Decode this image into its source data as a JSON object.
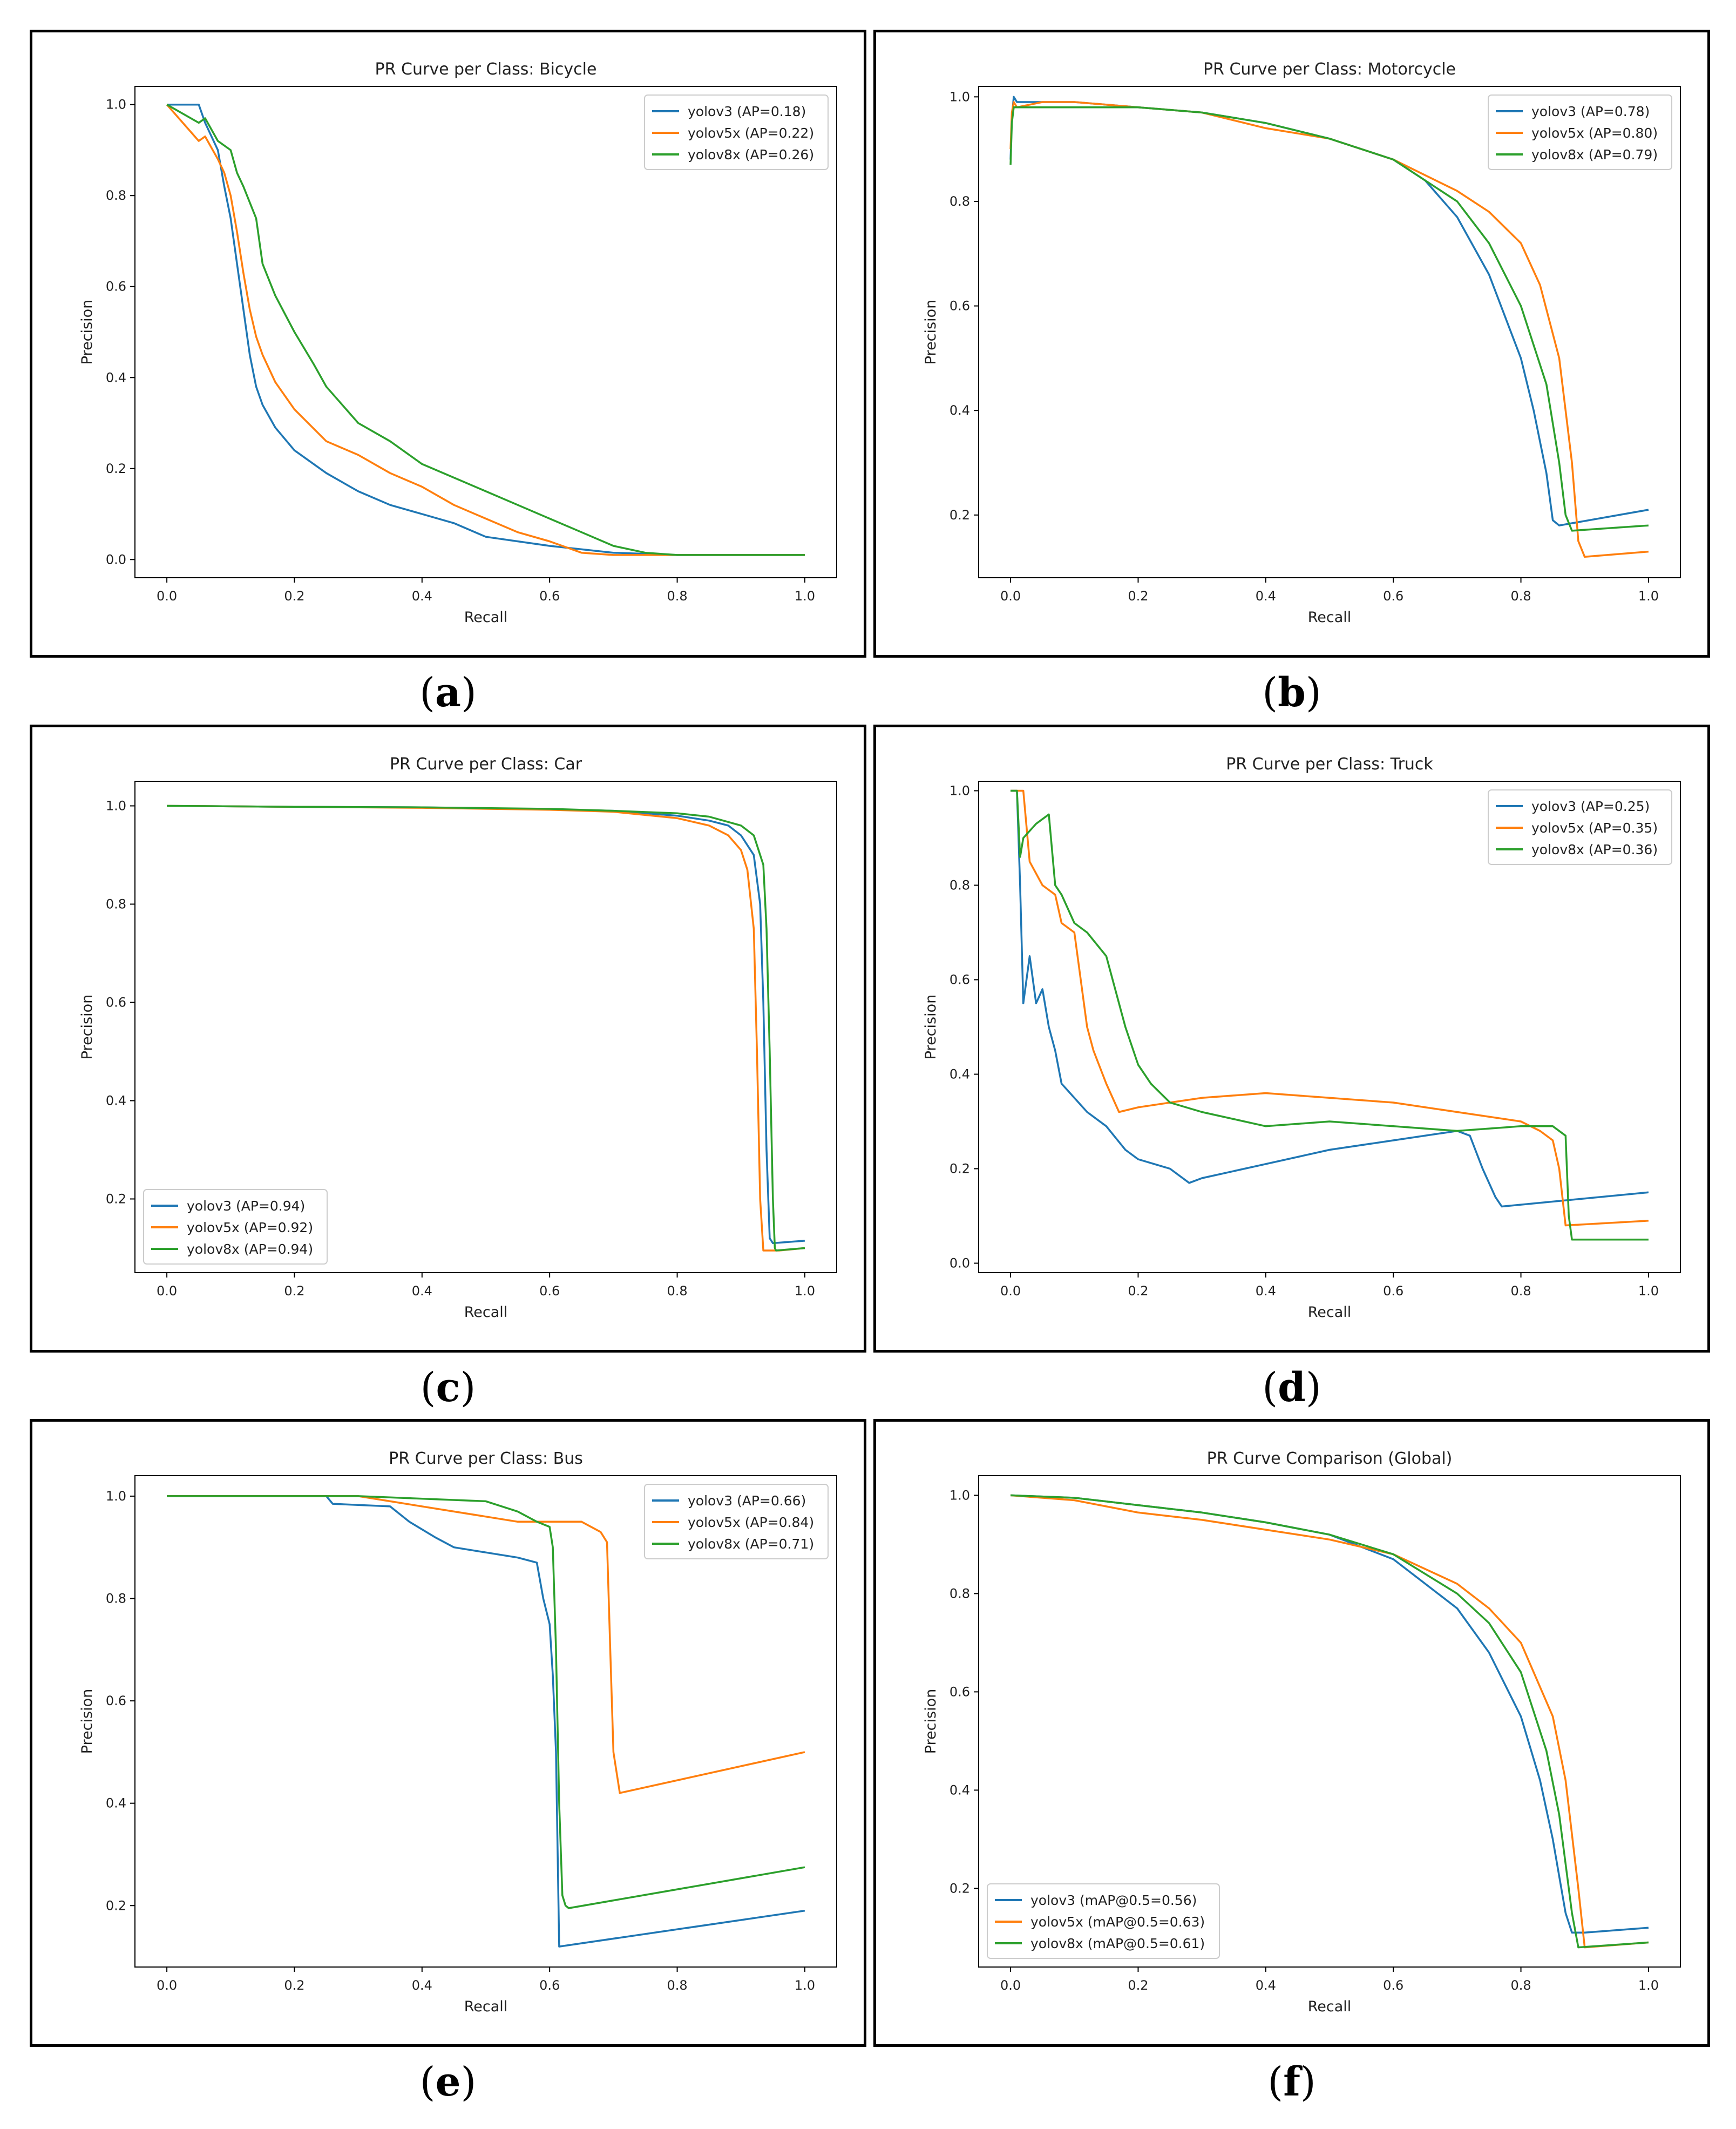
{
  "colors": {
    "yolov3": "#1f77b4",
    "yolov5x": "#ff7f0e",
    "yolov8x": "#2ca02c",
    "frame": "#000000"
  },
  "captions": [
    "a",
    "b",
    "c",
    "d",
    "e",
    "f"
  ],
  "chart_data": [
    {
      "type": "line",
      "title": "PR Curve per Class: Bicycle",
      "xlabel": "Recall",
      "ylabel": "Precision",
      "xlim": [
        -0.05,
        1.05
      ],
      "ylim": [
        -0.04,
        1.04
      ],
      "xticks": [
        "0.0",
        "0.2",
        "0.4",
        "0.6",
        "0.8",
        "1.0"
      ],
      "yticks": [
        "0.0",
        "0.2",
        "0.4",
        "0.6",
        "0.8",
        "1.0"
      ],
      "legend_position": "top-right",
      "series": [
        {
          "name": "yolov3 (AP=0.18)",
          "color_key": "yolov3",
          "x": [
            0.0,
            0.05,
            0.06,
            0.08,
            0.09,
            0.1,
            0.11,
            0.12,
            0.13,
            0.14,
            0.15,
            0.17,
            0.2,
            0.25,
            0.3,
            0.35,
            0.4,
            0.45,
            0.5,
            0.6,
            0.7,
            0.8,
            1.0
          ],
          "y": [
            1.0,
            1.0,
            0.96,
            0.9,
            0.82,
            0.75,
            0.65,
            0.55,
            0.45,
            0.38,
            0.34,
            0.29,
            0.24,
            0.19,
            0.15,
            0.12,
            0.1,
            0.08,
            0.05,
            0.03,
            0.015,
            0.01,
            0.01
          ]
        },
        {
          "name": "yolov5x (AP=0.22)",
          "color_key": "yolov5x",
          "x": [
            0.0,
            0.05,
            0.06,
            0.08,
            0.09,
            0.1,
            0.11,
            0.12,
            0.13,
            0.14,
            0.15,
            0.17,
            0.2,
            0.25,
            0.3,
            0.35,
            0.4,
            0.45,
            0.5,
            0.55,
            0.6,
            0.65,
            0.7,
            0.8,
            1.0
          ],
          "y": [
            1.0,
            0.92,
            0.93,
            0.88,
            0.85,
            0.8,
            0.72,
            0.63,
            0.55,
            0.49,
            0.45,
            0.39,
            0.33,
            0.26,
            0.23,
            0.19,
            0.16,
            0.12,
            0.09,
            0.06,
            0.04,
            0.015,
            0.01,
            0.01,
            0.01
          ]
        },
        {
          "name": "yolov8x (AP=0.26)",
          "color_key": "yolov8x",
          "x": [
            0.0,
            0.05,
            0.06,
            0.08,
            0.1,
            0.11,
            0.12,
            0.14,
            0.15,
            0.17,
            0.2,
            0.23,
            0.25,
            0.3,
            0.35,
            0.4,
            0.45,
            0.5,
            0.55,
            0.6,
            0.65,
            0.7,
            0.75,
            0.8,
            1.0
          ],
          "y": [
            1.0,
            0.96,
            0.97,
            0.92,
            0.9,
            0.85,
            0.82,
            0.75,
            0.65,
            0.58,
            0.5,
            0.43,
            0.38,
            0.3,
            0.26,
            0.21,
            0.18,
            0.15,
            0.12,
            0.09,
            0.06,
            0.03,
            0.015,
            0.01,
            0.01
          ]
        }
      ]
    },
    {
      "type": "line",
      "title": "PR Curve per Class: Motorcycle",
      "xlabel": "Recall",
      "ylabel": "Precision",
      "xlim": [
        -0.05,
        1.05
      ],
      "ylim": [
        0.08,
        1.02
      ],
      "xticks": [
        "0.0",
        "0.2",
        "0.4",
        "0.6",
        "0.8",
        "1.0"
      ],
      "yticks": [
        "0.2",
        "0.4",
        "0.6",
        "0.8",
        "1.0"
      ],
      "legend_position": "top-right",
      "series": [
        {
          "name": "yolov3 (AP=0.78)",
          "color_key": "yolov3",
          "x": [
            0.0,
            0.002,
            0.005,
            0.01,
            0.05,
            0.1,
            0.2,
            0.3,
            0.4,
            0.5,
            0.6,
            0.65,
            0.7,
            0.75,
            0.8,
            0.82,
            0.84,
            0.85,
            0.86,
            1.0
          ],
          "y": [
            0.88,
            0.96,
            1.0,
            0.99,
            0.99,
            0.99,
            0.98,
            0.97,
            0.95,
            0.92,
            0.88,
            0.84,
            0.77,
            0.66,
            0.5,
            0.4,
            0.28,
            0.19,
            0.18,
            0.21
          ]
        },
        {
          "name": "yolov5x (AP=0.80)",
          "color_key": "yolov5x",
          "x": [
            0.0,
            0.002,
            0.005,
            0.01,
            0.05,
            0.1,
            0.2,
            0.3,
            0.4,
            0.5,
            0.6,
            0.7,
            0.75,
            0.8,
            0.83,
            0.86,
            0.88,
            0.89,
            0.9,
            1.0
          ],
          "y": [
            0.9,
            0.97,
            0.99,
            0.98,
            0.99,
            0.99,
            0.98,
            0.97,
            0.94,
            0.92,
            0.88,
            0.82,
            0.78,
            0.72,
            0.64,
            0.5,
            0.3,
            0.15,
            0.12,
            0.13
          ]
        },
        {
          "name": "yolov8x (AP=0.79)",
          "color_key": "yolov8x",
          "x": [
            0.0,
            0.002,
            0.005,
            0.01,
            0.05,
            0.1,
            0.2,
            0.3,
            0.4,
            0.5,
            0.6,
            0.7,
            0.75,
            0.8,
            0.84,
            0.86,
            0.87,
            0.88,
            1.0
          ],
          "y": [
            0.87,
            0.95,
            0.98,
            0.98,
            0.98,
            0.98,
            0.98,
            0.97,
            0.95,
            0.92,
            0.88,
            0.8,
            0.72,
            0.6,
            0.45,
            0.3,
            0.2,
            0.17,
            0.18
          ]
        }
      ]
    },
    {
      "type": "line",
      "title": "PR Curve per Class: Car",
      "xlabel": "Recall",
      "ylabel": "Precision",
      "xlim": [
        -0.05,
        1.05
      ],
      "ylim": [
        0.05,
        1.05
      ],
      "xticks": [
        "0.0",
        "0.2",
        "0.4",
        "0.6",
        "0.8",
        "1.0"
      ],
      "yticks": [
        "0.2",
        "0.4",
        "0.6",
        "0.8",
        "1.0"
      ],
      "legend_position": "bottom-left",
      "series": [
        {
          "name": "yolov3 (AP=0.94)",
          "color_key": "yolov3",
          "x": [
            0.0,
            0.2,
            0.4,
            0.6,
            0.7,
            0.8,
            0.85,
            0.88,
            0.9,
            0.92,
            0.93,
            0.935,
            0.94,
            0.945,
            0.95,
            1.0
          ],
          "y": [
            1.0,
            0.998,
            0.997,
            0.993,
            0.99,
            0.98,
            0.97,
            0.96,
            0.94,
            0.9,
            0.8,
            0.6,
            0.3,
            0.12,
            0.11,
            0.115
          ]
        },
        {
          "name": "yolov5x (AP=0.92)",
          "color_key": "yolov5x",
          "x": [
            0.0,
            0.2,
            0.4,
            0.6,
            0.7,
            0.8,
            0.85,
            0.88,
            0.9,
            0.91,
            0.92,
            0.925,
            0.93,
            0.935,
            0.96,
            1.0
          ],
          "y": [
            1.0,
            0.998,
            0.996,
            0.992,
            0.988,
            0.975,
            0.96,
            0.94,
            0.91,
            0.87,
            0.75,
            0.5,
            0.2,
            0.095,
            0.095,
            0.1
          ]
        },
        {
          "name": "yolov8x (AP=0.94)",
          "color_key": "yolov8x",
          "x": [
            0.0,
            0.2,
            0.4,
            0.6,
            0.7,
            0.8,
            0.85,
            0.9,
            0.92,
            0.935,
            0.94,
            0.945,
            0.95,
            0.953,
            0.955,
            1.0
          ],
          "y": [
            1.0,
            0.998,
            0.997,
            0.994,
            0.99,
            0.985,
            0.978,
            0.96,
            0.94,
            0.88,
            0.75,
            0.5,
            0.2,
            0.1,
            0.095,
            0.1
          ]
        }
      ]
    },
    {
      "type": "line",
      "title": "PR Curve per Class: Truck",
      "xlabel": "Recall",
      "ylabel": "Precision",
      "xlim": [
        -0.05,
        1.05
      ],
      "ylim": [
        -0.02,
        1.02
      ],
      "xticks": [
        "0.0",
        "0.2",
        "0.4",
        "0.6",
        "0.8",
        "1.0"
      ],
      "yticks": [
        "0.0",
        "0.2",
        "0.4",
        "0.6",
        "0.8",
        "1.0"
      ],
      "legend_position": "top-right",
      "series": [
        {
          "name": "yolov3 (AP=0.25)",
          "color_key": "yolov3",
          "x": [
            0.0,
            0.01,
            0.015,
            0.02,
            0.03,
            0.04,
            0.05,
            0.06,
            0.07,
            0.08,
            0.1,
            0.12,
            0.15,
            0.18,
            0.2,
            0.25,
            0.28,
            0.3,
            0.4,
            0.5,
            0.6,
            0.7,
            0.72,
            0.74,
            0.76,
            0.77,
            1.0
          ],
          "y": [
            1.0,
            1.0,
            0.8,
            0.55,
            0.65,
            0.55,
            0.58,
            0.5,
            0.45,
            0.38,
            0.35,
            0.32,
            0.29,
            0.24,
            0.22,
            0.2,
            0.17,
            0.18,
            0.21,
            0.24,
            0.26,
            0.28,
            0.27,
            0.2,
            0.14,
            0.12,
            0.15
          ]
        },
        {
          "name": "yolov5x (AP=0.35)",
          "color_key": "yolov5x",
          "x": [
            0.0,
            0.01,
            0.02,
            0.03,
            0.05,
            0.07,
            0.08,
            0.1,
            0.11,
            0.12,
            0.13,
            0.15,
            0.17,
            0.2,
            0.25,
            0.3,
            0.4,
            0.5,
            0.6,
            0.7,
            0.8,
            0.83,
            0.85,
            0.86,
            0.87,
            1.0
          ],
          "y": [
            1.0,
            1.0,
            1.0,
            0.85,
            0.8,
            0.78,
            0.72,
            0.7,
            0.6,
            0.5,
            0.45,
            0.38,
            0.32,
            0.33,
            0.34,
            0.35,
            0.36,
            0.35,
            0.34,
            0.32,
            0.3,
            0.28,
            0.26,
            0.2,
            0.08,
            0.09
          ]
        },
        {
          "name": "yolov8x (AP=0.36)",
          "color_key": "yolov8x",
          "x": [
            0.0,
            0.01,
            0.015,
            0.02,
            0.04,
            0.06,
            0.07,
            0.08,
            0.1,
            0.12,
            0.15,
            0.18,
            0.2,
            0.22,
            0.25,
            0.3,
            0.4,
            0.5,
            0.6,
            0.7,
            0.8,
            0.85,
            0.87,
            0.875,
            0.88,
            1.0
          ],
          "y": [
            1.0,
            1.0,
            0.86,
            0.9,
            0.93,
            0.95,
            0.8,
            0.78,
            0.72,
            0.7,
            0.65,
            0.5,
            0.42,
            0.38,
            0.34,
            0.32,
            0.29,
            0.3,
            0.29,
            0.28,
            0.29,
            0.29,
            0.27,
            0.1,
            0.05,
            0.05
          ]
        }
      ]
    },
    {
      "type": "line",
      "title": "PR Curve per Class: Bus",
      "xlabel": "Recall",
      "ylabel": "Precision",
      "xlim": [
        -0.05,
        1.05
      ],
      "ylim": [
        0.08,
        1.04
      ],
      "xticks": [
        "0.0",
        "0.2",
        "0.4",
        "0.6",
        "0.8",
        "1.0"
      ],
      "yticks": [
        "0.2",
        "0.4",
        "0.6",
        "0.8",
        "1.0"
      ],
      "legend_position": "top-right",
      "series": [
        {
          "name": "yolov3 (AP=0.66)",
          "color_key": "yolov3",
          "x": [
            0.0,
            0.25,
            0.26,
            0.35,
            0.38,
            0.42,
            0.45,
            0.5,
            0.55,
            0.58,
            0.59,
            0.6,
            0.605,
            0.61,
            0.615,
            1.0
          ],
          "y": [
            1.0,
            1.0,
            0.985,
            0.98,
            0.95,
            0.92,
            0.9,
            0.89,
            0.88,
            0.87,
            0.8,
            0.75,
            0.65,
            0.5,
            0.12,
            0.19
          ]
        },
        {
          "name": "yolov5x (AP=0.84)",
          "color_key": "yolov5x",
          "x": [
            0.0,
            0.3,
            0.35,
            0.45,
            0.5,
            0.55,
            0.6,
            0.65,
            0.68,
            0.69,
            0.695,
            0.7,
            0.705,
            0.71,
            1.0
          ],
          "y": [
            1.0,
            1.0,
            0.99,
            0.97,
            0.96,
            0.95,
            0.95,
            0.95,
            0.93,
            0.91,
            0.7,
            0.5,
            0.46,
            0.42,
            0.5
          ]
        },
        {
          "name": "yolov8x (AP=0.71)",
          "color_key": "yolov8x",
          "x": [
            0.0,
            0.3,
            0.5,
            0.55,
            0.58,
            0.6,
            0.605,
            0.61,
            0.615,
            0.62,
            0.625,
            0.63,
            1.0
          ],
          "y": [
            1.0,
            1.0,
            0.99,
            0.97,
            0.95,
            0.94,
            0.9,
            0.7,
            0.4,
            0.22,
            0.2,
            0.195,
            0.275
          ]
        }
      ]
    },
    {
      "type": "line",
      "title": "PR Curve Comparison (Global)",
      "xlabel": "Recall",
      "ylabel": "Precision",
      "xlim": [
        -0.05,
        1.05
      ],
      "ylim": [
        0.04,
        1.04
      ],
      "xticks": [
        "0.0",
        "0.2",
        "0.4",
        "0.6",
        "0.8",
        "1.0"
      ],
      "yticks": [
        "0.2",
        "0.4",
        "0.6",
        "0.8",
        "1.0"
      ],
      "legend_position": "bottom-left",
      "series": [
        {
          "name": "yolov3 (mAP@0.5=0.56)",
          "color_key": "yolov3",
          "x": [
            0.0,
            0.1,
            0.2,
            0.3,
            0.4,
            0.5,
            0.6,
            0.7,
            0.75,
            0.8,
            0.83,
            0.85,
            0.87,
            0.88,
            0.9,
            1.0
          ],
          "y": [
            1.0,
            0.995,
            0.98,
            0.965,
            0.945,
            0.92,
            0.87,
            0.77,
            0.68,
            0.55,
            0.42,
            0.3,
            0.15,
            0.11,
            0.11,
            0.12
          ]
        },
        {
          "name": "yolov5x (mAP@0.5=0.63)",
          "color_key": "yolov5x",
          "x": [
            0.0,
            0.1,
            0.2,
            0.3,
            0.4,
            0.5,
            0.6,
            0.7,
            0.75,
            0.8,
            0.85,
            0.87,
            0.89,
            0.9,
            1.0
          ],
          "y": [
            1.0,
            0.99,
            0.965,
            0.95,
            0.93,
            0.91,
            0.88,
            0.82,
            0.77,
            0.7,
            0.55,
            0.42,
            0.2,
            0.08,
            0.09
          ]
        },
        {
          "name": "yolov8x (mAP@0.5=0.61)",
          "color_key": "yolov8x",
          "x": [
            0.0,
            0.1,
            0.2,
            0.3,
            0.4,
            0.5,
            0.6,
            0.7,
            0.75,
            0.8,
            0.84,
            0.86,
            0.88,
            0.89,
            1.0
          ],
          "y": [
            1.0,
            0.995,
            0.98,
            0.965,
            0.945,
            0.92,
            0.88,
            0.8,
            0.74,
            0.64,
            0.48,
            0.35,
            0.15,
            0.08,
            0.09
          ]
        }
      ]
    }
  ]
}
